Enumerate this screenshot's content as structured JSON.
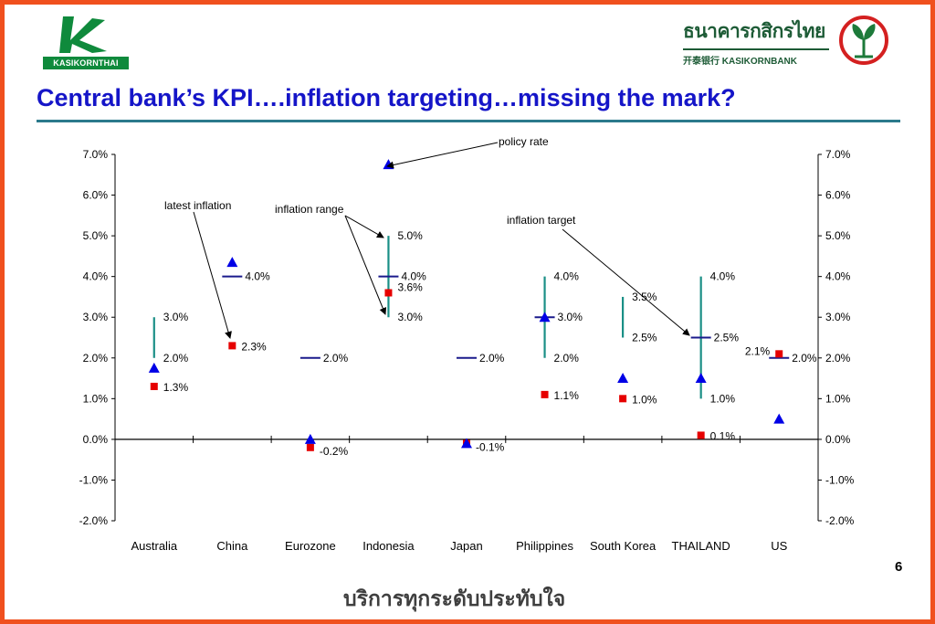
{
  "header": {
    "left_logo_text": "KASIKORNTHAI",
    "right_logo_thai": "ธนาคารกสิกรไทย",
    "right_logo_english": "开泰银行 KASIKORNBANK",
    "title": "Central bank’s KPI….inflation targeting…missing the mark?"
  },
  "footer": {
    "page_number": "6",
    "slogan": "บริการทุกระดับประทับใจ"
  },
  "colors": {
    "title": "#1515c8",
    "frame": "#f0501e",
    "range_line": "#1a8f86",
    "target_marker": "#1a1a8c",
    "policy_rate": "#0000e6",
    "latest_inflation": "#e60000",
    "brand_green": "#0f8a3c"
  },
  "chart_data": {
    "type": "scatter",
    "categories": [
      "Australia",
      "China",
      "Eurozone",
      "Indonesia",
      "Japan",
      "Philippines",
      "South Korea",
      "THAILAND",
      "US"
    ],
    "ylim": [
      -2.0,
      7.0
    ],
    "yticks": [
      "7.0%",
      "6.0%",
      "5.0%",
      "4.0%",
      "3.0%",
      "2.0%",
      "1.0%",
      "0.0%",
      "-1.0%",
      "-2.0%"
    ],
    "ytick_values": [
      7,
      6,
      5,
      4,
      3,
      2,
      1,
      0,
      -1,
      -2
    ],
    "dual_y_axis": true,
    "inflation_range": [
      {
        "category": "Australia",
        "low": 2.0,
        "high": 3.0,
        "low_label": "2.0%",
        "high_label": "3.0%"
      },
      {
        "category": "Indonesia",
        "low": 3.0,
        "high": 5.0,
        "low_label": "3.0%",
        "high_label": "5.0%"
      },
      {
        "category": "Philippines",
        "low": 2.0,
        "high": 4.0,
        "low_label": "2.0%",
        "high_label": "4.0%"
      },
      {
        "category": "South Korea",
        "low": 2.5,
        "high": 3.5,
        "low_label": "2.5%",
        "high_label": "3.5%"
      },
      {
        "category": "THAILAND",
        "low": 1.0,
        "high": 4.0,
        "low_label": "1.0%",
        "high_label": "4.0%"
      }
    ],
    "inflation_target": [
      {
        "category": "China",
        "value": 4.0,
        "label": "4.0%"
      },
      {
        "category": "Eurozone",
        "value": 2.0,
        "label": "2.0%"
      },
      {
        "category": "Indonesia",
        "value": 4.0,
        "label": "4.0%"
      },
      {
        "category": "Japan",
        "value": 2.0,
        "label": "2.0%"
      },
      {
        "category": "Philippines",
        "value": 3.0,
        "label": "3.0%"
      },
      {
        "category": "THAILAND",
        "value": 2.5,
        "label": "2.5%"
      },
      {
        "category": "US",
        "value": 2.0,
        "label": "2.0%"
      }
    ],
    "latest_inflation": [
      {
        "category": "Australia",
        "value": 1.3,
        "label": "1.3%"
      },
      {
        "category": "China",
        "value": 2.3,
        "label": "2.3%"
      },
      {
        "category": "Eurozone",
        "value": -0.2,
        "label": "-0.2%"
      },
      {
        "category": "Indonesia",
        "value": 3.6,
        "label": "3.6%"
      },
      {
        "category": "Japan",
        "value": -0.1,
        "label": "-0.1%"
      },
      {
        "category": "Philippines",
        "value": 1.1,
        "label": "1.1%"
      },
      {
        "category": "South Korea",
        "value": 1.0,
        "label": "1.0%"
      },
      {
        "category": "THAILAND",
        "value": 0.1,
        "label": "0.1%"
      },
      {
        "category": "US",
        "value": 2.1,
        "label": "2.1%"
      }
    ],
    "policy_rate": [
      {
        "category": "Australia",
        "value": 1.75
      },
      {
        "category": "China",
        "value": 4.35
      },
      {
        "category": "Eurozone",
        "value": 0.0
      },
      {
        "category": "Indonesia",
        "value": 6.75
      },
      {
        "category": "Japan",
        "value": -0.1
      },
      {
        "category": "Philippines",
        "value": 3.0
      },
      {
        "category": "South Korea",
        "value": 1.5
      },
      {
        "category": "THAILAND",
        "value": 1.5
      },
      {
        "category": "US",
        "value": 0.5
      }
    ],
    "annotations": [
      "policy rate",
      "latest inflation",
      "inflation range",
      "inflation target"
    ],
    "grid": false,
    "legend": "none"
  }
}
